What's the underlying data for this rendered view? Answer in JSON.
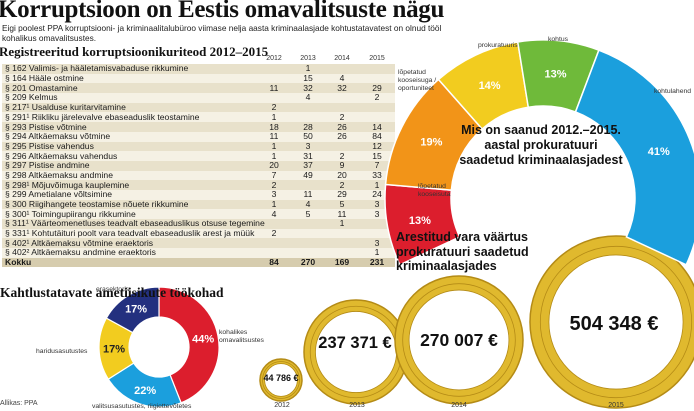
{
  "title": "Korruptsioon on Eestis omavalitsuste nägu",
  "lede": "Eigi poolest PPA korruptsiooni- ja kriminaalitalubüroo viimase nelja aasta kriminaalasjade kohtustatavatest on olnud tööl kohalikus omavalitsustes.",
  "registered": {
    "title": "Registreeritud korruptsioonikuriteod 2012–2015",
    "years": [
      "2012",
      "2013",
      "2014",
      "2015"
    ],
    "rows": [
      {
        "label": "§ 162 Valimis- ja hääletamisvabaduse rikkumine",
        "v": [
          "",
          "1",
          "",
          ""
        ]
      },
      {
        "label": "§ 164 Hääle ostmine",
        "v": [
          "",
          "15",
          "4",
          ""
        ]
      },
      {
        "label": "§ 201 Omastamine",
        "v": [
          "11",
          "32",
          "32",
          "29"
        ]
      },
      {
        "label": "§ 209 Kelmus",
        "v": [
          "",
          "4",
          "",
          "2"
        ]
      },
      {
        "label": "§ 217¹ Usalduse kuritarvitamine",
        "v": [
          "2",
          "",
          "",
          ""
        ]
      },
      {
        "label": "§ 291¹ Riikliku järelevalve ebaseaduslik teostamine",
        "v": [
          "1",
          "",
          "2",
          ""
        ]
      },
      {
        "label": "§ 293 Pistise võtmine",
        "v": [
          "18",
          "28",
          "26",
          "14"
        ]
      },
      {
        "label": "§ 294 Altkäemaksu võtmine",
        "v": [
          "11",
          "50",
          "26",
          "84"
        ]
      },
      {
        "label": "§ 295 Pistise vahendus",
        "v": [
          "1",
          "3",
          "",
          "12"
        ]
      },
      {
        "label": "§ 296 Altkäemaksu vahendus",
        "v": [
          "1",
          "31",
          "2",
          "15"
        ]
      },
      {
        "label": "§ 297 Pistise andmine",
        "v": [
          "20",
          "37",
          "9",
          "7"
        ]
      },
      {
        "label": "§ 298 Altkäemaksu andmine",
        "v": [
          "7",
          "49",
          "20",
          "33"
        ]
      },
      {
        "label": "§ 298¹ Mõjuvõimuga kauplemine",
        "v": [
          "2",
          "",
          "2",
          "1"
        ]
      },
      {
        "label": "§ 299 Ametialane võltsimine",
        "v": [
          "3",
          "11",
          "29",
          "24"
        ]
      },
      {
        "label": "§ 300 Riigihangete teostamise nõuete rikkumine",
        "v": [
          "1",
          "4",
          "5",
          "3"
        ]
      },
      {
        "label": "§ 300¹ Toimingupiirangu rikkumine",
        "v": [
          "4",
          "5",
          "11",
          "3"
        ]
      },
      {
        "label": "§ 311¹ Väärteomenetluses teadvalt ebaseaduslikus otsuse tegemine",
        "v": [
          "",
          "",
          "1",
          ""
        ]
      },
      {
        "label": "§ 331¹ Kohtutäituri poolt vara teadvalt ebaseaduslik arest ja müük",
        "v": [
          "2",
          "",
          "",
          ""
        ]
      },
      {
        "label": "§ 402¹ Altkäemaksu võtmine eraektoris",
        "v": [
          "",
          "",
          "",
          "3"
        ]
      },
      {
        "label": "§ 402² Altkäemaksu andmine eraektoris",
        "v": [
          "",
          "",
          "",
          "1"
        ]
      }
    ],
    "total": {
      "label": "Kokku",
      "v": [
        "84",
        "270",
        "169",
        "231"
      ]
    }
  },
  "ring": {
    "title": "Kahtlustatavate ametiisikute töökohad",
    "source": "Allikas: PPA",
    "colors": {
      "red": "#dc1e2d",
      "yellow": "#f2cc1f",
      "blue": "#1b9fdd",
      "navy": "#23307f"
    }
  },
  "arc": {
    "title": "Mis on saanud 2012.–2015. aastal prokuratuuri saadetud kriminaalasjadest",
    "colors": {
      "red": "#dc1e2d",
      "orange": "#f29418",
      "yellow": "#f2cc1f",
      "green": "#6fba3a",
      "blue": "#1b9fdd"
    }
  },
  "coins": {
    "title": "Arestitud vara väärtus prokuratuuri saadetud kriminaalasjades",
    "items": [
      {
        "value": "44 786 €",
        "year": "2012"
      },
      {
        "value": "237 371 €",
        "year": "2013"
      },
      {
        "value": "270 007 €",
        "year": "2014"
      },
      {
        "value": "504 348 €",
        "year": "2015"
      }
    ],
    "colors": {
      "ring": "#e0b92e",
      "ring_dark": "#b48b16",
      "core": "#ffffff"
    }
  },
  "chart_data": [
    {
      "type": "pie",
      "categories": [
        "kohalikes omavalitsustes",
        "valitsusasutustes, riigiettevõtetes",
        "haridusasutustes",
        "erasektoris"
      ],
      "values": [
        44,
        22,
        17,
        17
      ],
      "labels": [
        "44%",
        "22%",
        "17%",
        "17%"
      ],
      "colors": [
        "#dc1e2d",
        "#1b9fdd",
        "#f2cc1f",
        "#23307f"
      ]
    },
    {
      "type": "pie",
      "categories": [
        "lõpetatud kooseisuta",
        "lõpetatud kooseisuga / oportuniteet",
        "prokuratuuris",
        "kohtus",
        "kohtulahend"
      ],
      "values": [
        13,
        19,
        14,
        13,
        41
      ],
      "labels": [
        "13%",
        "19%",
        "14%",
        "13%",
        "41%"
      ],
      "colors": [
        "#dc1e2d",
        "#f29418",
        "#f2cc1f",
        "#6fba3a",
        "#1b9fdd"
      ]
    }
  ]
}
